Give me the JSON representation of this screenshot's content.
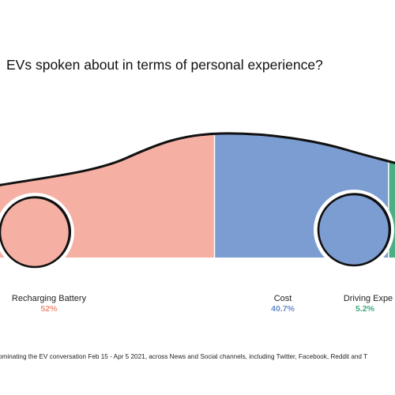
{
  "title": "EVs spoken about in terms of personal experience?",
  "footnote": "ominating the EV conversation Feb 15 - Apr 5 2021, across News and Social channels, including Twitter, Facebook, Reddit and T",
  "chart_data": {
    "type": "bar",
    "title": "EVs spoken about in terms of personal experience?",
    "categories": [
      "Recharging Battery",
      "Cost",
      "Driving Expe"
    ],
    "values": [
      52,
      40.7,
      5.2
    ],
    "value_labels": [
      "52%",
      "40.7%",
      "5.2%"
    ],
    "unit": "%",
    "colors": [
      "#f5b0a3",
      "#7b9dd1",
      "#4caf87"
    ],
    "value_colors": [
      "#f0907c",
      "#6a8ccc",
      "#3daa7e"
    ]
  }
}
